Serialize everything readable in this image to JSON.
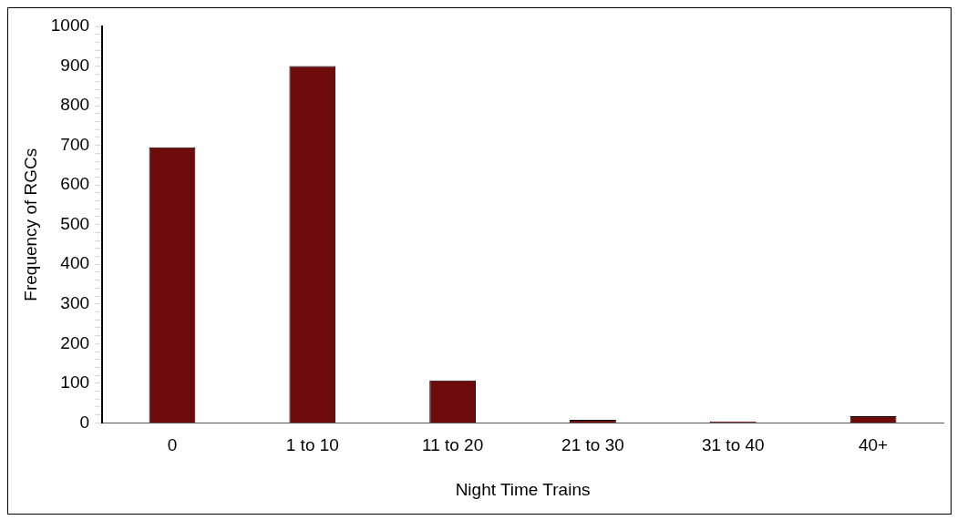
{
  "chart_data": {
    "type": "bar",
    "xlabel": "Night Time Trains",
    "ylabel": "Frequency of RGCs",
    "categories": [
      "0",
      "1 to 10",
      "11 to 20",
      "21 to 30",
      "31 to 40",
      "40+"
    ],
    "values": [
      695,
      900,
      107,
      8,
      4,
      17
    ],
    "color": "#6e0b0b",
    "ylim": [
      0,
      1000
    ],
    "yticks": [
      0,
      {
        "value": 20,
        "label": null
      },
      {
        "value": 40,
        "label": null
      },
      {
        "value": 60,
        "label": null
      },
      {
        "value": 80,
        "label": null
      },
      100,
      {
        "value": 120,
        "label": null
      },
      {
        "value": 140,
        "label": null
      },
      {
        "value": 160,
        "label": null
      },
      {
        "value": 180,
        "label": null
      },
      200,
      {
        "value": 220,
        "label": null
      },
      {
        "value": 240,
        "label": null
      },
      {
        "value": 260,
        "label": null
      },
      {
        "value": 280,
        "label": null
      },
      300,
      {
        "value": 320,
        "label": null
      },
      {
        "value": 340,
        "label": null
      },
      {
        "value": 360,
        "label": null
      },
      {
        "value": 380,
        "label": null
      },
      400,
      {
        "value": 420,
        "label": null
      },
      {
        "value": 440,
        "label": null
      },
      {
        "value": 460,
        "label": null
      },
      {
        "value": 480,
        "label": null
      },
      500,
      {
        "value": 520,
        "label": null
      },
      {
        "value": 540,
        "label": null
      },
      {
        "value": 560,
        "label": null
      },
      {
        "value": 580,
        "label": null
      },
      600,
      {
        "value": 620,
        "label": null
      },
      {
        "value": 640,
        "label": null
      },
      {
        "value": 660,
        "label": null
      },
      {
        "value": 680,
        "label": null
      },
      700,
      {
        "value": 720,
        "label": null
      },
      {
        "value": 740,
        "label": null
      },
      {
        "value": 760,
        "label": null
      },
      {
        "value": 780,
        "label": null
      },
      800,
      {
        "value": 820,
        "label": null
      },
      {
        "value": 840,
        "label": null
      },
      {
        "value": 860,
        "label": null
      },
      {
        "value": 880,
        "label": null
      },
      900,
      {
        "value": 920,
        "label": null
      },
      {
        "value": 940,
        "label": null
      },
      {
        "value": 960,
        "label": null
      },
      {
        "value": 980,
        "label": null
      },
      1000
    ],
    "grid": false,
    "legend": false
  }
}
